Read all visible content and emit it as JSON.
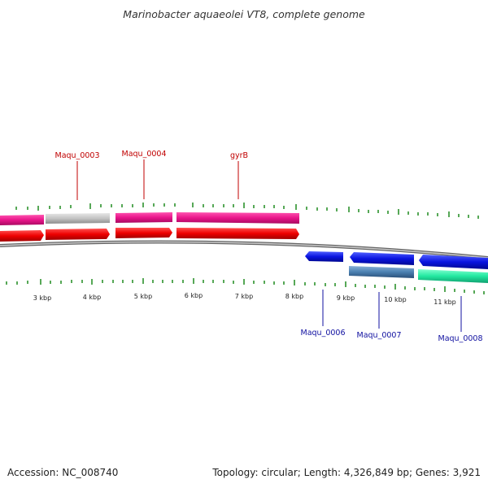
{
  "title": "Marinobacter aquaeolei VT8, complete genome",
  "footer": {
    "accession": "Accession: NC_008740",
    "summary": "Topology: circular; Length: 4,326,849 bp; Genes: 3,921"
  },
  "ticks": [
    {
      "label": "3 kbp"
    },
    {
      "label": "4 kbp"
    },
    {
      "label": "5 kbp"
    },
    {
      "label": "6 kbp"
    },
    {
      "label": "7 kbp"
    },
    {
      "label": "8 kbp"
    },
    {
      "label": "9 kbp"
    },
    {
      "label": "10 kbp"
    },
    {
      "label": "11 kbp"
    }
  ],
  "gene_labels": [
    {
      "name": "Maqu_0003"
    },
    {
      "name": "Maqu_0004"
    },
    {
      "name": "gyrB"
    },
    {
      "name": "Maqu_0006"
    },
    {
      "name": "Maqu_0007"
    },
    {
      "name": "Maqu_0008"
    }
  ],
  "colors": {
    "cds_forward": "#ee0000",
    "gene_pink": "#e8158a",
    "gene_gray": "#c8c8c8",
    "cds_reverse": "#0a14e0",
    "gene_teal": "#4a7fb0",
    "gene_green": "#22e8a0",
    "tick": "#1f8a1f",
    "backbone": "#777777"
  }
}
